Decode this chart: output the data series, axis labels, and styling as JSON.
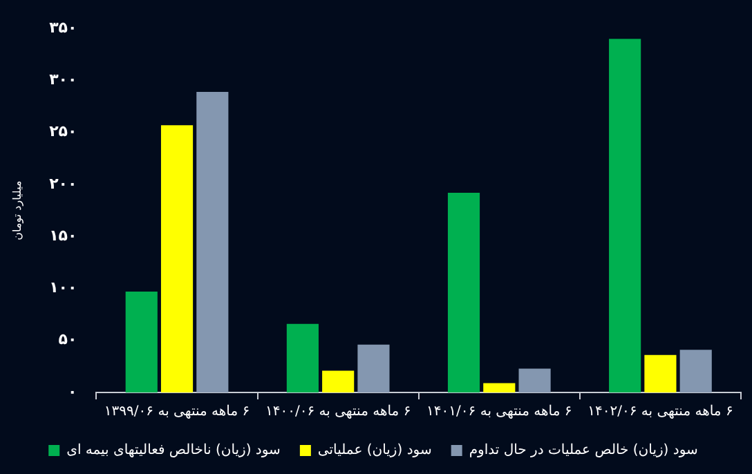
{
  "chart_data": {
    "type": "bar",
    "ylabel": "میلیارد تومان",
    "categories": [
      "۶ ماهه منتهی به ۱۳۹۹/۰۶",
      "۶ ماهه منتهی به ۱۴۰۰/۰۶",
      "۶ ماهه منتهی به ۱۴۰۱/۰۶",
      "۶ ماهه منتهی به ۱۴۰۲/۰۶"
    ],
    "series": [
      {
        "name": "سود (زیان) ناخالص فعالیتهای بیمه ای",
        "color": "#00b050",
        "values": [
          97,
          66,
          192,
          340
        ]
      },
      {
        "name": "سود (زیان) عملیاتی",
        "color": "#ffff00",
        "values": [
          257,
          21,
          9,
          36
        ]
      },
      {
        "name": "سود (زیان) خالص عملیات در حال تداوم",
        "color": "#8497b0",
        "values": [
          289,
          46,
          23,
          41
        ]
      }
    ],
    "ylim": [
      0,
      350
    ],
    "yticks": [
      {
        "value": 0,
        "label": "۰"
      },
      {
        "value": 50,
        "label": "۵۰"
      },
      {
        "value": 100,
        "label": "۱۰۰"
      },
      {
        "value": 150,
        "label": "۱۵۰"
      },
      {
        "value": 200,
        "label": "۲۰۰"
      },
      {
        "value": 250,
        "label": "۲۵۰"
      },
      {
        "value": 300,
        "label": "۳۰۰"
      },
      {
        "value": 350,
        "label": "۳۵۰"
      }
    ],
    "grid": false,
    "legend": "bottom"
  }
}
